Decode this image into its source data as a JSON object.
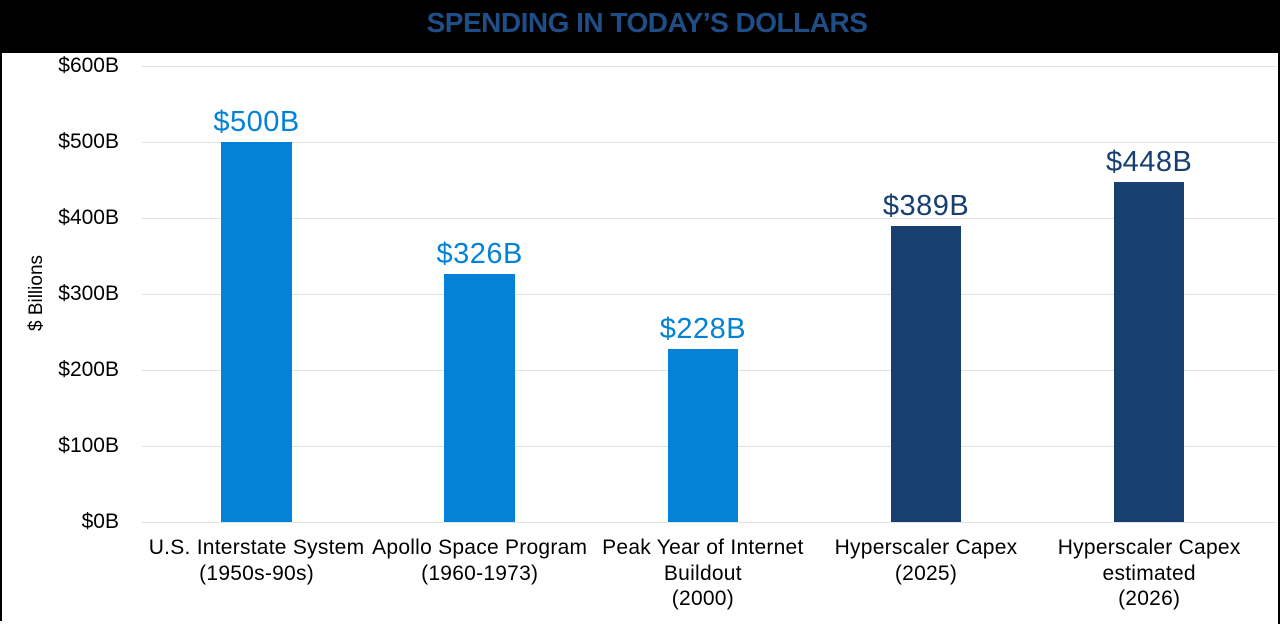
{
  "colors": {
    "frame": "#000000",
    "background": "#ffffff",
    "title_text": "#1f4e87",
    "axis_text": "#000000",
    "gridline": "#e2e2e2",
    "light_blue": "#0382d8",
    "navy": "#173f70"
  },
  "chart_data": {
    "type": "bar",
    "title": "SPENDING IN TODAY’S DOLLARS",
    "ylabel": "$ Billions",
    "xlabel": "",
    "ylim": [
      0,
      600
    ],
    "grid": true,
    "legend": false,
    "ytick_values": [
      0,
      100,
      200,
      300,
      400,
      500,
      600
    ],
    "ytick_labels": [
      "$0B",
      "$100B",
      "$200B",
      "$300B",
      "$400B",
      "$500B",
      "$600B"
    ],
    "categories": [
      "U.S. Interstate System (1950s-90s)",
      "Apollo Space Program (1960-1973)",
      "Peak Year of Internet Buildout (2000)",
      "Hyperscaler Capex (2025)",
      "Hyperscaler Capex estimated (2026)"
    ],
    "category_lines": [
      [
        "U.S. Interstate System",
        "(1950s-90s)"
      ],
      [
        "Apollo Space Program",
        "(1960-1973)"
      ],
      [
        "Peak Year of Internet",
        "Buildout",
        "(2000)"
      ],
      [
        "Hyperscaler Capex",
        "(2025)"
      ],
      [
        "Hyperscaler Capex",
        "estimated",
        "(2026)"
      ]
    ],
    "values": [
      500,
      326,
      228,
      389,
      448
    ],
    "data_labels": [
      "$500B",
      "$326B",
      "$228B",
      "$389B",
      "$448B"
    ],
    "bar_color_keys": [
      "light_blue",
      "light_blue",
      "light_blue",
      "navy",
      "navy"
    ]
  }
}
